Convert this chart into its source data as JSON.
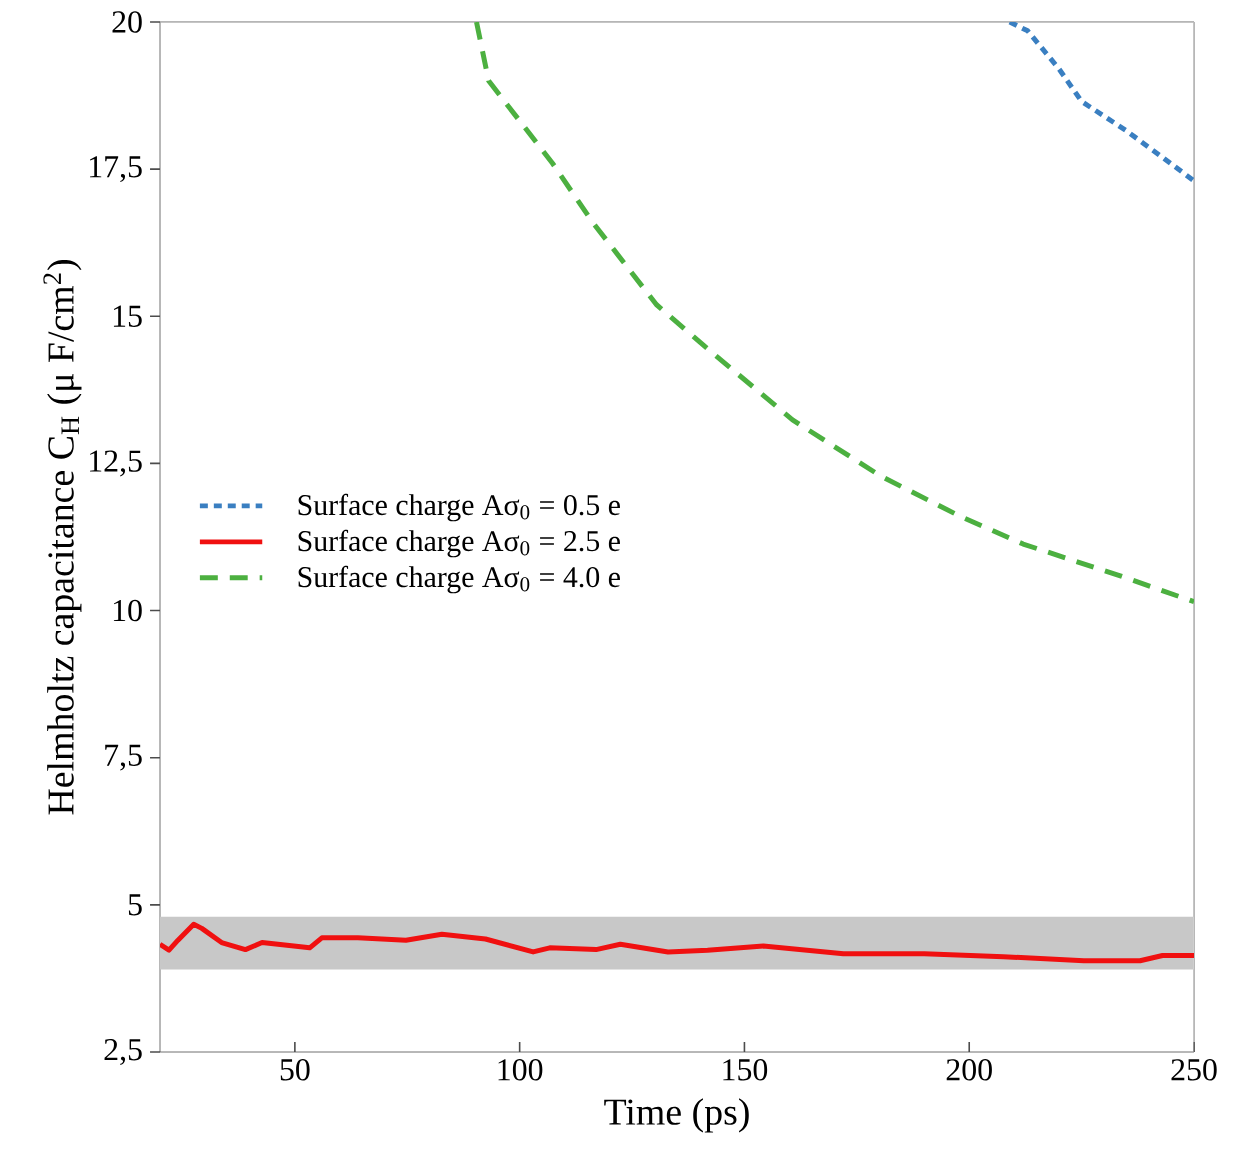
{
  "chart_data": {
    "type": "line",
    "xlabel": "Time (ps)",
    "ylabel": "Helmholtz capacitance C$_{H}$ (μ F/cm$^{2}$)",
    "xlim": [
      20,
      250
    ],
    "xticks": [
      50,
      100,
      150,
      200,
      250
    ],
    "ylim": [
      2.5,
      20
    ],
    "yticks": [
      {
        "value": 2.5,
        "label": "2,5"
      },
      5,
      {
        "value": 7.5,
        "label": "7,5"
      },
      10,
      {
        "value": 12.5,
        "label": "12,5"
      },
      15,
      {
        "value": 17.5,
        "label": "17,5"
      },
      20
    ],
    "legend": "left",
    "grid": false,
    "bands": [
      {
        "axis": "y",
        "from": 3.9,
        "to": 4.8,
        "color": "#c8c8c8"
      }
    ],
    "series": [
      {
        "name": "Surface charge Aσ$_{0}$ = 0.5 e",
        "color": "#3a7fc1",
        "line_style": "dotted",
        "x": [
          209,
          213,
          220,
          225,
          235,
          243,
          250
        ],
        "values": [
          20,
          19.85,
          19.2,
          18.65,
          18.15,
          17.7,
          17.3
        ]
      },
      {
        "name": "Surface charge Aσ$_{0}$ = 2.5 e",
        "color": "#f01010",
        "line_style": "solid",
        "x": [
          20,
          22,
          24,
          27.5,
          29.3,
          33.7,
          39,
          42.7,
          53.3,
          56,
          64,
          74.7,
          82.7,
          92.4,
          103,
          106.7,
          117,
          122.4,
          133,
          141.8,
          154.2,
          172,
          190,
          207.6,
          225.5,
          238,
          243,
          250
        ],
        "values": [
          4.33,
          4.23,
          4.4,
          4.67,
          4.6,
          4.36,
          4.24,
          4.36,
          4.27,
          4.44,
          4.44,
          4.4,
          4.5,
          4.42,
          4.2,
          4.27,
          4.24,
          4.33,
          4.2,
          4.23,
          4.3,
          4.17,
          4.17,
          4.12,
          4.05,
          4.05,
          4.14,
          4.14
        ]
      },
      {
        "name": "Surface charge Aσ$_{0}$ = 4.0 e",
        "color": "#4cb040",
        "line_style": "dashed",
        "x": [
          90.4,
          93.1,
          107.3,
          116.2,
          130.4,
          141,
          160.7,
          180.2,
          198,
          212,
          233.6,
          250
        ],
        "values": [
          20,
          19.0,
          17.6,
          16.6,
          15.2,
          14.5,
          13.24,
          12.29,
          11.6,
          11.13,
          10.59,
          10.15
        ]
      }
    ]
  }
}
